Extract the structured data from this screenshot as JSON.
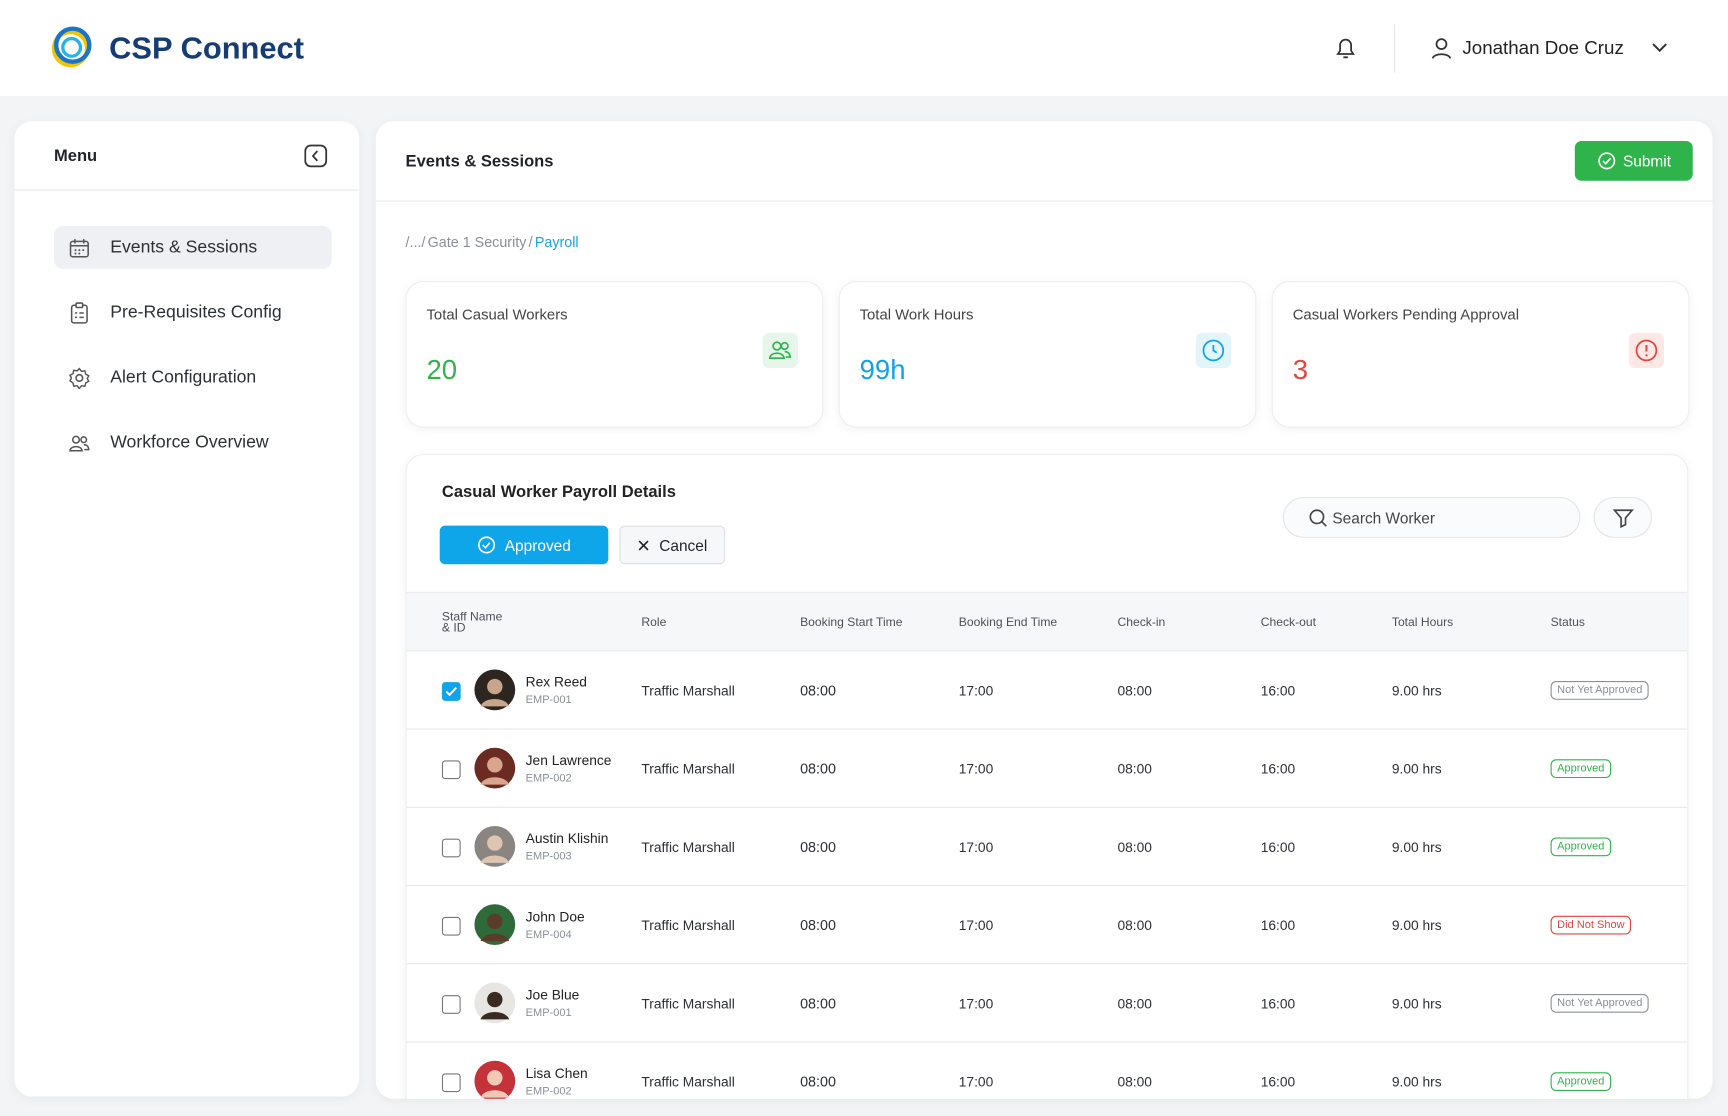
{
  "header": {
    "brand": "CSP Connect",
    "user": "Jonathan Doe Cruz"
  },
  "sidebar": {
    "title": "Menu",
    "items": [
      {
        "label": "Events & Sessions",
        "active": true
      },
      {
        "label": "Pre-Requisites Config",
        "active": false
      },
      {
        "label": "Alert Configuration",
        "active": false
      },
      {
        "label": "Workforce Overview",
        "active": false
      }
    ]
  },
  "main": {
    "title": "Events & Sessions",
    "submit": "Submit",
    "breadcrumb": [
      "/.../",
      "Gate 1 Security",
      "/",
      "Payroll"
    ]
  },
  "stats": [
    {
      "label": "Total Casual Workers",
      "value": 20,
      "color": "#2fb44b",
      "tint": "#e6f6ea"
    },
    {
      "label": "Total Work Hours",
      "value": "99h",
      "color": "#12a3e6",
      "tint": "#e2f4fc"
    },
    {
      "label": "Casual Workers Pending Approval",
      "value": 3,
      "color": "#e0463a",
      "tint": "#fde8e6"
    }
  ],
  "table": {
    "title": "Casual Worker Payroll Details",
    "approve_button": "Approved",
    "cancel_button": "Cancel",
    "search_placeholder": "Search Worker",
    "columns": [
      "Staff Name\n& ID",
      "Role",
      "Booking Start Time",
      "Booking End Time",
      "Check-in",
      "Check-out",
      "Total Hours",
      "Status"
    ],
    "rows": [
      {
        "name": "Rex Reed",
        "id": "EMP-001",
        "role": "Traffic Marshall",
        "start": "08:00",
        "end": "17:00",
        "check_in": "08:00",
        "check_out": "16:00",
        "hours": "9.00 hrs",
        "status": "Not Yet Approved",
        "status_color": "#8a8f98",
        "selected": true
      },
      {
        "name": "Jen Lawrence",
        "id": "EMP-002",
        "role": "Traffic Marshall",
        "start": "08:00",
        "end": "17:00",
        "check_in": "08:00",
        "check_out": "16:00",
        "hours": "9.00 hrs",
        "status": "Approved",
        "status_color": "#2fb44b",
        "selected": false
      },
      {
        "name": "Austin Klishin",
        "id": "EMP-003",
        "role": "Traffic Marshall",
        "start": "08:00",
        "end": "17:00",
        "check_in": "08:00",
        "check_out": "16:00",
        "hours": "9.00 hrs",
        "status": "Approved",
        "status_color": "#2fb44b",
        "selected": false
      },
      {
        "name": "John Doe",
        "id": "EMP-004",
        "role": "Traffic Marshall",
        "start": "08:00",
        "end": "17:00",
        "check_in": "08:00",
        "check_out": "16:00",
        "hours": "9.00 hrs",
        "status": "Did Not Show",
        "status_color": "#e0463a",
        "selected": false
      },
      {
        "name": "Joe Blue",
        "id": "EMP-001",
        "role": "Traffic Marshall",
        "start": "08:00",
        "end": "17:00",
        "check_in": "08:00",
        "check_out": "16:00",
        "hours": "9.00 hrs",
        "status": "Not Yet Approved",
        "status_color": "#8a8f98",
        "selected": false
      },
      {
        "name": "Lisa Chen",
        "id": "EMP-002",
        "role": "Traffic Marshall",
        "start": "08:00",
        "end": "17:00",
        "check_in": "08:00",
        "check_out": "16:00",
        "hours": "9.00 hrs",
        "status": "Approved",
        "status_color": "#2fb44b",
        "selected": false
      }
    ]
  }
}
